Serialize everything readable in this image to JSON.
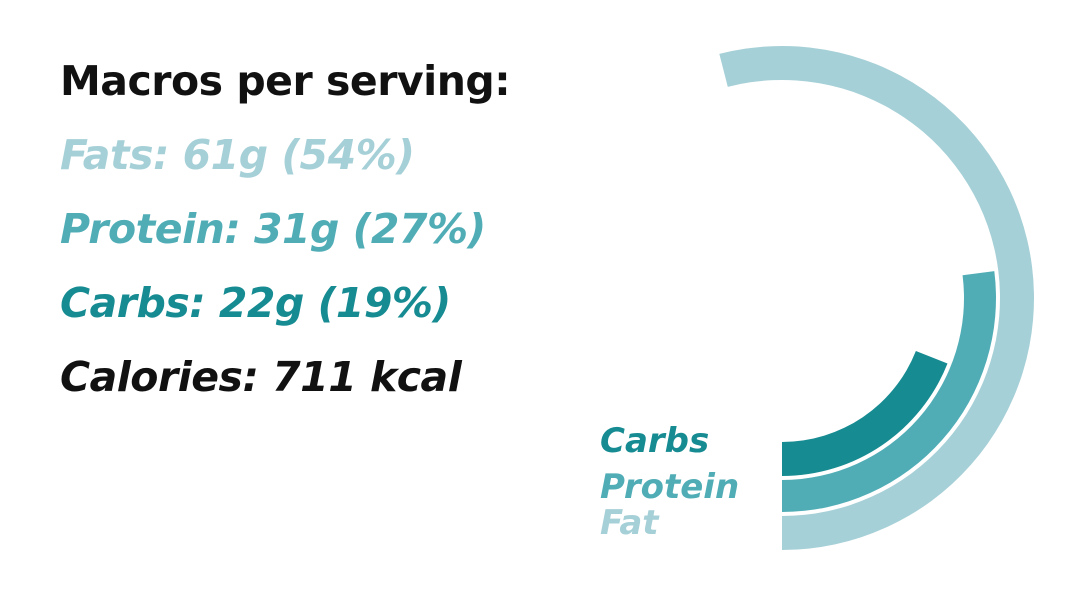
{
  "summary": {
    "heading": "Macros per serving:",
    "fats_line": "Fats: 61g (54%)",
    "protein_line": "Protein: 31g (27%)",
    "carbs_line": "Carbs: 22g (19%)",
    "calories_line": "Calories: 711 kcal"
  },
  "colors": {
    "fat": "#a6d0d7",
    "protein": "#50adb6",
    "carbs": "#168b92",
    "text": "#111111"
  },
  "chart_data": {
    "type": "radial-bar",
    "series": [
      {
        "name": "Fat",
        "grams": 61,
        "percent": 54,
        "color": "#a6d0d7"
      },
      {
        "name": "Protein",
        "grams": 31,
        "percent": 27,
        "color": "#50adb6"
      },
      {
        "name": "Carbs",
        "grams": 22,
        "percent": 19,
        "color": "#168b92"
      }
    ],
    "legend": [
      "Carbs",
      "Protein",
      "Fat"
    ],
    "legend_position": "bottom-left of rings",
    "max_percent": 100
  }
}
